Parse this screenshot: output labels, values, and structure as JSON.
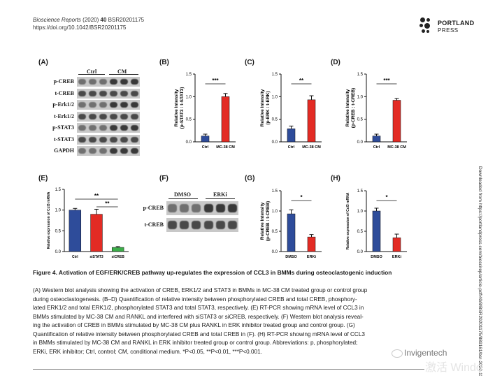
{
  "header": {
    "journal": "Bioscience Reports",
    "year": "(2020)",
    "volume": "40",
    "article_id": "BSR20201175",
    "doi": "https://doi.org/10.1042/BSR20201175"
  },
  "logo": {
    "line1": "PORTLAND",
    "line2": "PRESS"
  },
  "sidebar_text": "Downloaded from https://portlandpress.com/bioscirep/article-pdf/40/8/BSR20201175/889161/bsr-2020-1175.pdf",
  "panels": {
    "A": {
      "label": "(A)",
      "groups": [
        "Ctrl",
        "CM"
      ],
      "rows": [
        "p-CREB",
        "t-CREB",
        "p-Erk1/2",
        "t-Erk1/2",
        "p-STAT3",
        "t-STAT3",
        "GAPDH"
      ]
    },
    "F": {
      "label": "(F)",
      "groups": [
        "DMSO",
        "ERKi"
      ],
      "rows": [
        "p-CREB",
        "t-CREB"
      ]
    }
  },
  "chart_data": [
    {
      "panel": "(B)",
      "type": "bar",
      "categories": [
        "Ctrl",
        "MC-38 CM"
      ],
      "values": [
        0.13,
        1.0
      ],
      "errors": [
        0.04,
        0.07
      ],
      "colors": [
        "#2e4c9a",
        "#e32b24"
      ],
      "ylabel": [
        "Relative Intensity",
        "(p-STAT3 : t-STAT3)"
      ],
      "ylim": [
        0,
        1.5
      ],
      "yticks": [
        "0.0",
        "0.5",
        "1.0",
        "1.5"
      ],
      "significance": [
        {
          "from": 0,
          "to": 1,
          "text": "***"
        }
      ]
    },
    {
      "panel": "(C)",
      "type": "bar",
      "categories": [
        "Ctrl",
        "MC-38 CM"
      ],
      "values": [
        0.29,
        0.93
      ],
      "errors": [
        0.06,
        0.09
      ],
      "colors": [
        "#2e4c9a",
        "#e32b24"
      ],
      "ylabel": [
        "Relative Intensity",
        "(p-ERK : t-ERK)"
      ],
      "ylim": [
        0,
        1.5
      ],
      "yticks": [
        "0.0",
        "0.5",
        "1.0",
        "1.5"
      ],
      "significance": [
        {
          "from": 0,
          "to": 1,
          "text": "**"
        }
      ]
    },
    {
      "panel": "(D)",
      "type": "bar",
      "categories": [
        "Ctrl",
        "MC-38 CM"
      ],
      "values": [
        0.13,
        0.92
      ],
      "errors": [
        0.04,
        0.04
      ],
      "colors": [
        "#2e4c9a",
        "#e32b24"
      ],
      "ylabel": [
        "Relative Intensity",
        "(p-CREB : t-CREB)"
      ],
      "ylim": [
        0,
        1.5
      ],
      "yticks": [
        "0.0",
        "0.5",
        "1.0",
        "1.5"
      ],
      "significance": [
        {
          "from": 0,
          "to": 1,
          "text": "***"
        }
      ]
    },
    {
      "panel": "(E)",
      "type": "bar",
      "categories": [
        "Ctrl",
        "siSTAT3",
        "siCREB"
      ],
      "values": [
        1.0,
        0.9,
        0.1
      ],
      "errors": [
        0.04,
        0.12,
        0.02
      ],
      "colors": [
        "#2e4c9a",
        "#e32b24",
        "#3cae49"
      ],
      "ylabel": [
        "Relative expression of Ccl3 mRNA"
      ],
      "ylim": [
        0,
        1.5
      ],
      "yticks": [
        "0.0",
        "0.5",
        "1.0",
        "1.5"
      ],
      "significance": [
        {
          "from": 0,
          "to": 2,
          "text": "**"
        },
        {
          "from": 1,
          "to": 2,
          "text": "**"
        }
      ]
    },
    {
      "panel": "(G)",
      "type": "bar",
      "categories": [
        "DMSO",
        "ERKi"
      ],
      "values": [
        0.93,
        0.36
      ],
      "errors": [
        0.1,
        0.06
      ],
      "colors": [
        "#2e4c9a",
        "#e32b24"
      ],
      "ylabel": [
        "Relative Intensity",
        "(p-CREB : t-CREB)"
      ],
      "ylim": [
        0,
        1.5
      ],
      "yticks": [
        "0.0",
        "0.5",
        "1.0",
        "1.5"
      ],
      "significance": [
        {
          "from": 0,
          "to": 1,
          "text": "*"
        }
      ]
    },
    {
      "panel": "(H)",
      "type": "bar",
      "categories": [
        "DMSO",
        "ERKi"
      ],
      "values": [
        1.0,
        0.34
      ],
      "errors": [
        0.07,
        0.09
      ],
      "colors": [
        "#2e4c9a",
        "#e32b24"
      ],
      "ylabel": [
        "Relative expression of Ccl3 mRNA"
      ],
      "ylim": [
        0,
        1.5
      ],
      "yticks": [
        "0.0",
        "0.5",
        "1.0",
        "1.5"
      ],
      "significance": [
        {
          "from": 0,
          "to": 1,
          "text": "*"
        }
      ]
    }
  ],
  "caption": {
    "title": "Figure 4. Activation of EGF/ERK/CREB pathway up-regulates the expression of CCL3 in BMMs during osteoclastogenic induction",
    "lines": [
      "(A) Western blot analysis showing the activation of CREB, ERK1/2 and STAT3 in BMMs in MC-38 CM treated group or control group",
      "during osteoclastogenesis. (B–D) Quantification of relative intensity between phosphorylated CREB and total CREB, phosphory-",
      "lated ERK1/2 and total ERK1/2, phosphorylated STAT3 and total STAT3, respectively. (E) RT-PCR showing mRNA level of CCL3 in",
      "BMMs stimulated by MC-38 CM and RANKL and interfered with siSTAT3 or siCREB, respectively. (F) Western blot analysis reveal-",
      "ing the activation of CREB in BMMs stimulated by MC-38 CM plus RANKL in ERK inhibitor treated group and control group. (G)",
      "Quantification of relative intensity between phosphorylated CREB and total CREB in (F). (H) RT-PCR showing mRNA level of CCL3",
      "in BMMs stimulated by MC-38 CM and RANKL in ERK inhibitor treated group or control group. Abbreviations: p, phosphorylated;",
      "ERKi, ERK inhibitor; Ctrl, control; CM, conditional medium. *P<0.05, **P<0.01, ***P<0.001."
    ]
  },
  "watermark": {
    "line1": "Invigentech",
    "line2": "激活 Windo"
  }
}
